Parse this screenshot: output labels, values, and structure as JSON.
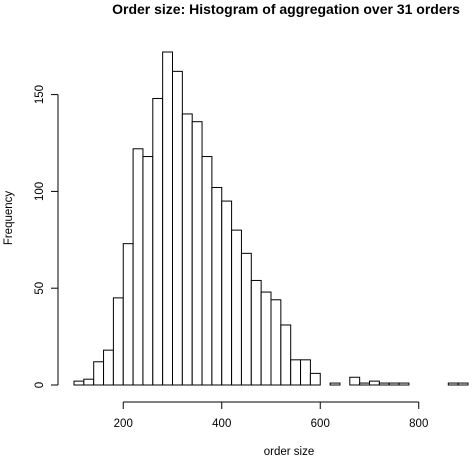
{
  "chart_data": {
    "type": "bar",
    "title": "Order size: Histogram of aggregation over 31 orders",
    "xlabel": "order size",
    "ylabel": "Frequency",
    "bin_width": 20,
    "bins": [
      {
        "start": 100,
        "end": 120,
        "count": 2
      },
      {
        "start": 120,
        "end": 140,
        "count": 3
      },
      {
        "start": 140,
        "end": 160,
        "count": 12
      },
      {
        "start": 160,
        "end": 180,
        "count": 18
      },
      {
        "start": 180,
        "end": 200,
        "count": 45
      },
      {
        "start": 200,
        "end": 220,
        "count": 73
      },
      {
        "start": 220,
        "end": 240,
        "count": 122
      },
      {
        "start": 240,
        "end": 260,
        "count": 118
      },
      {
        "start": 260,
        "end": 280,
        "count": 148
      },
      {
        "start": 280,
        "end": 300,
        "count": 172
      },
      {
        "start": 300,
        "end": 320,
        "count": 162
      },
      {
        "start": 320,
        "end": 340,
        "count": 140
      },
      {
        "start": 340,
        "end": 360,
        "count": 136
      },
      {
        "start": 360,
        "end": 380,
        "count": 118
      },
      {
        "start": 380,
        "end": 400,
        "count": 102
      },
      {
        "start": 400,
        "end": 420,
        "count": 95
      },
      {
        "start": 420,
        "end": 440,
        "count": 80
      },
      {
        "start": 440,
        "end": 460,
        "count": 68
      },
      {
        "start": 460,
        "end": 480,
        "count": 54
      },
      {
        "start": 480,
        "end": 500,
        "count": 48
      },
      {
        "start": 500,
        "end": 520,
        "count": 44
      },
      {
        "start": 520,
        "end": 540,
        "count": 31
      },
      {
        "start": 540,
        "end": 560,
        "count": 13
      },
      {
        "start": 560,
        "end": 580,
        "count": 13
      },
      {
        "start": 580,
        "end": 600,
        "count": 6
      },
      {
        "start": 600,
        "end": 620,
        "count": 0
      },
      {
        "start": 620,
        "end": 640,
        "count": 1
      },
      {
        "start": 640,
        "end": 660,
        "count": 0
      },
      {
        "start": 660,
        "end": 680,
        "count": 4
      },
      {
        "start": 680,
        "end": 700,
        "count": 1
      },
      {
        "start": 700,
        "end": 720,
        "count": 2
      },
      {
        "start": 720,
        "end": 740,
        "count": 1
      },
      {
        "start": 740,
        "end": 760,
        "count": 1
      },
      {
        "start": 760,
        "end": 780,
        "count": 1
      },
      {
        "start": 780,
        "end": 800,
        "count": 0
      },
      {
        "start": 800,
        "end": 820,
        "count": 0
      },
      {
        "start": 820,
        "end": 840,
        "count": 0
      },
      {
        "start": 840,
        "end": 860,
        "count": 0
      },
      {
        "start": 860,
        "end": 880,
        "count": 1
      },
      {
        "start": 880,
        "end": 900,
        "count": 1
      }
    ],
    "xlim": [
      100,
      900
    ],
    "ylim": [
      0,
      172
    ],
    "x_ticks": [
      200,
      400,
      600,
      800
    ],
    "y_ticks": [
      0,
      50,
      100,
      150
    ],
    "grid": false,
    "colors": {
      "bar_fill": "#ffffff",
      "bar_stroke": "#000000",
      "axis": "#000000",
      "background": "#ffffff"
    }
  }
}
